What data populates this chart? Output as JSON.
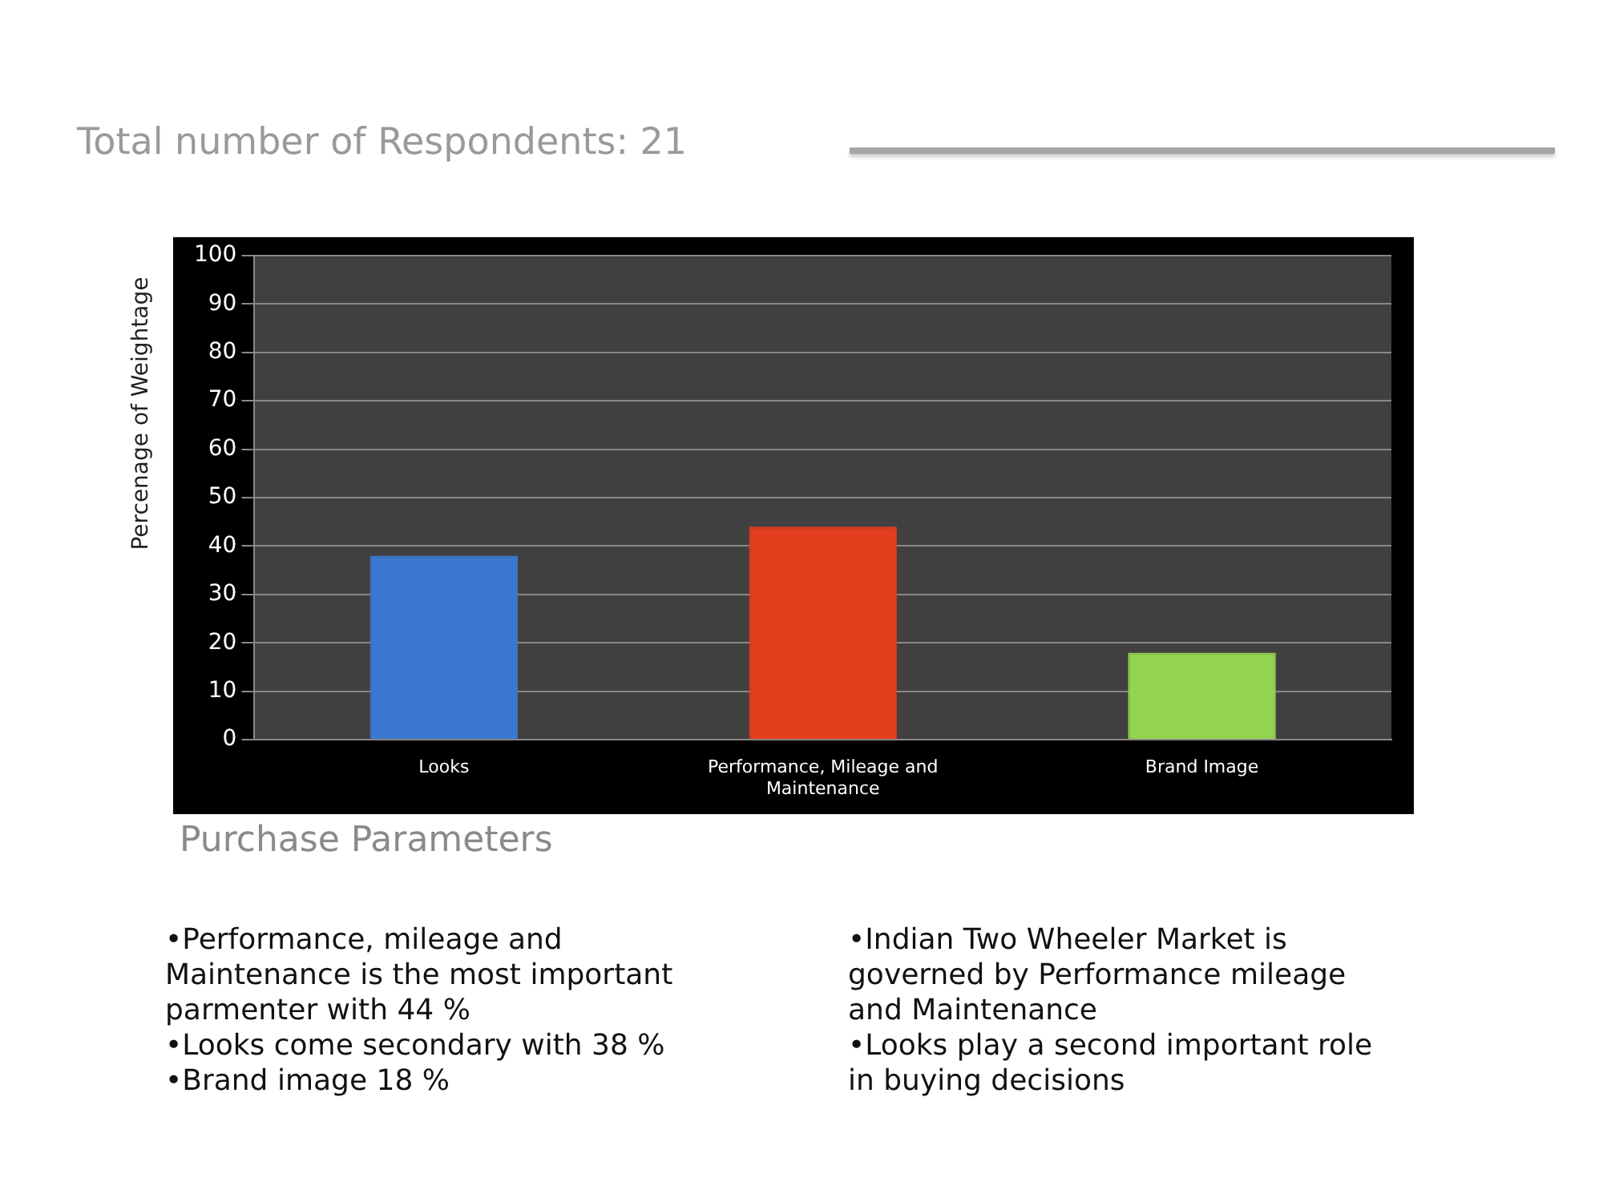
{
  "chart_data": {
    "type": "bar",
    "title": "Total number of Respondents: 21",
    "xlabel": "Purchase Parameters",
    "ylabel": "Percenage of Weightage",
    "categories": [
      "Looks",
      "Performance, Mileage and Maintenance",
      "Brand Image"
    ],
    "values": [
      38,
      44,
      18
    ],
    "colors": [
      "#3b78d0",
      "#e23d1d",
      "#93d451"
    ],
    "ylim": [
      0,
      100
    ],
    "yticks": [
      0,
      10,
      20,
      30,
      40,
      50,
      60,
      70,
      80,
      90,
      100
    ],
    "grid": "y",
    "annotations": [
      "•Performance, mileage and Maintenance is the most important parmenter with 44 %",
      "•Looks come secondary with 38 %",
      "•Brand image 18 %",
      "•Indian Two Wheeler Market is governed by Performance mileage and Maintenance",
      "•Looks play a second  important role in buying decisions"
    ]
  }
}
